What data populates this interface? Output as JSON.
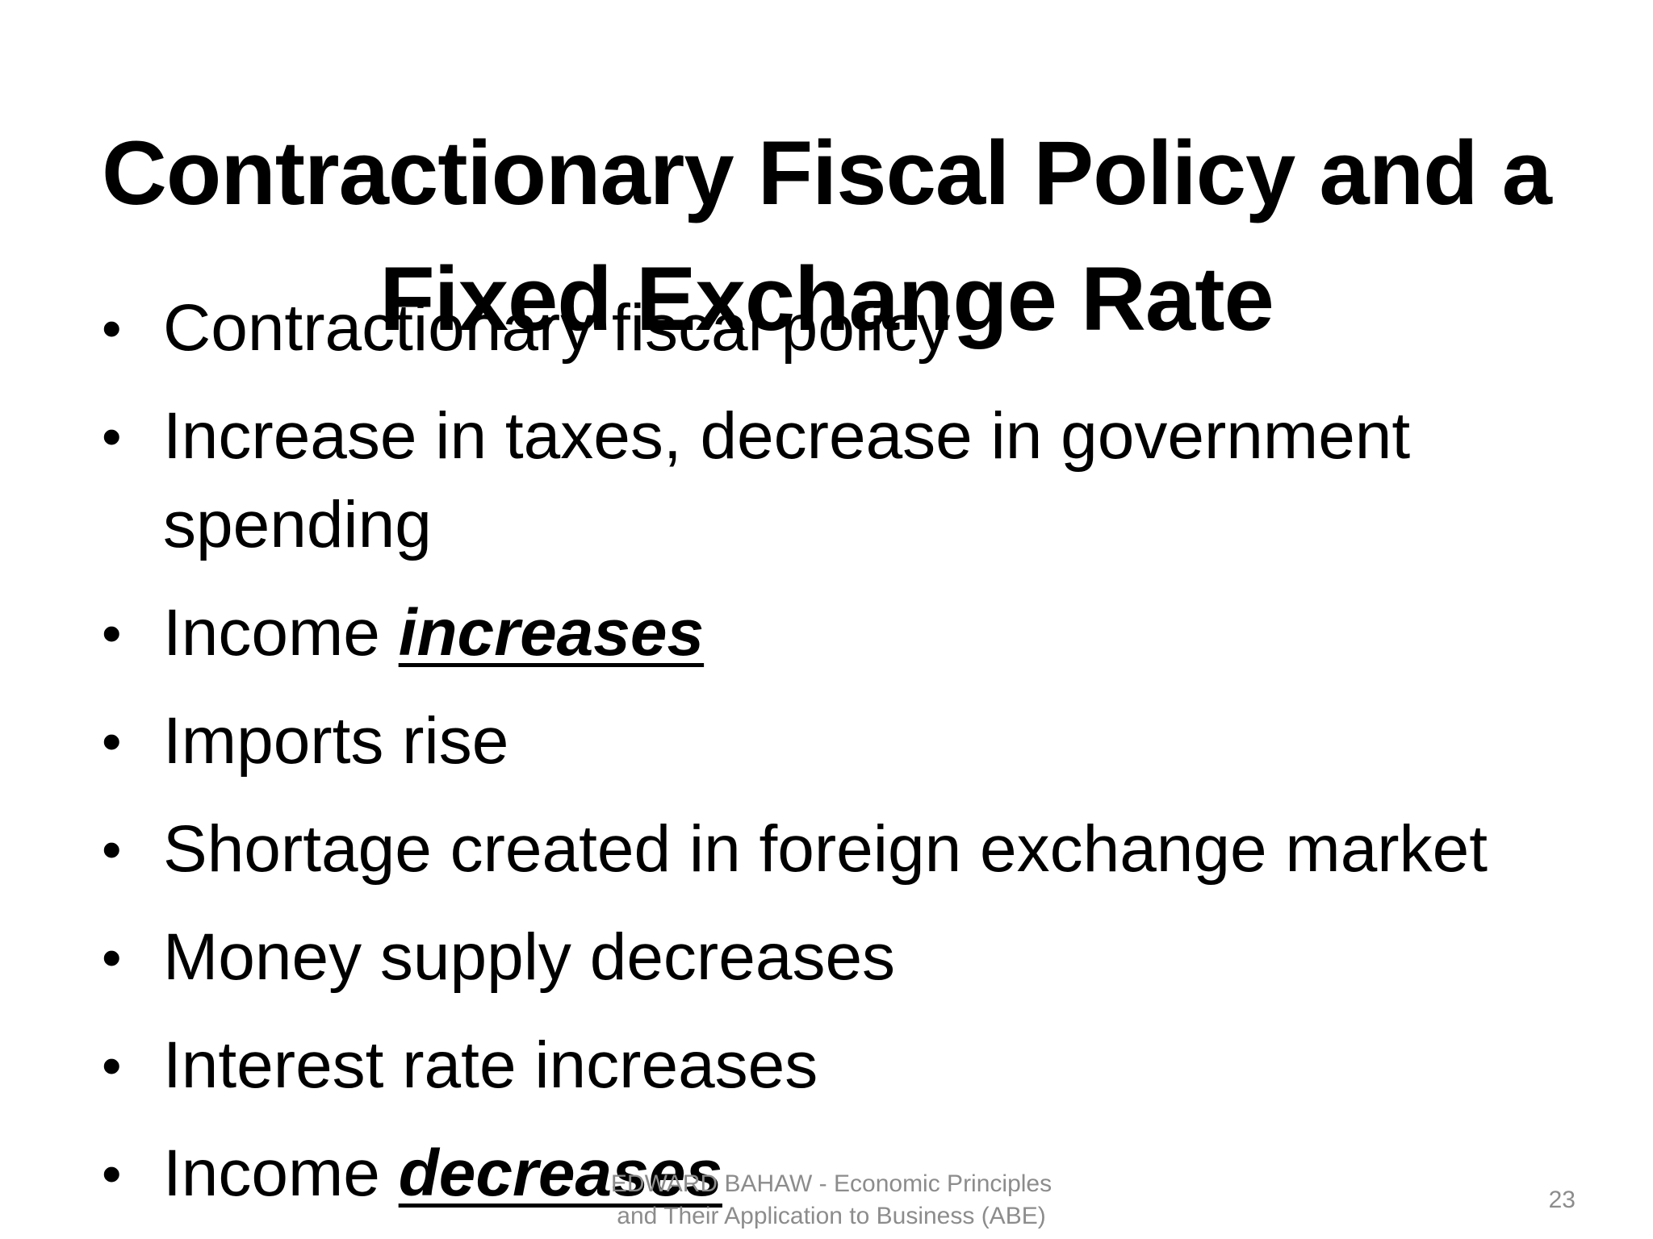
{
  "slide": {
    "title_lines": [
      "Contractionary Fiscal Policy and a",
      "Fixed Exchange Rate"
    ],
    "bullet_glyph": "•",
    "bullets": [
      {
        "text": "Contractionary fiscal policy",
        "emphasis": ""
      },
      {
        "text": "Increase in taxes, decrease in government spending",
        "emphasis": ""
      },
      {
        "text": "Income ",
        "emphasis": "increases"
      },
      {
        "text": "Imports rise",
        "emphasis": ""
      },
      {
        "text": "Shortage created in foreign exchange market",
        "emphasis": ""
      },
      {
        "text": "Money supply decreases",
        "emphasis": ""
      },
      {
        "text": "Interest rate increases",
        "emphasis": ""
      },
      {
        "text": "Income ",
        "emphasis": "decreases"
      }
    ],
    "footer_lines": [
      "EDWARD BAHAW - Economic Principles",
      "and Their Application to Business (ABE)"
    ],
    "page_number": "23"
  }
}
